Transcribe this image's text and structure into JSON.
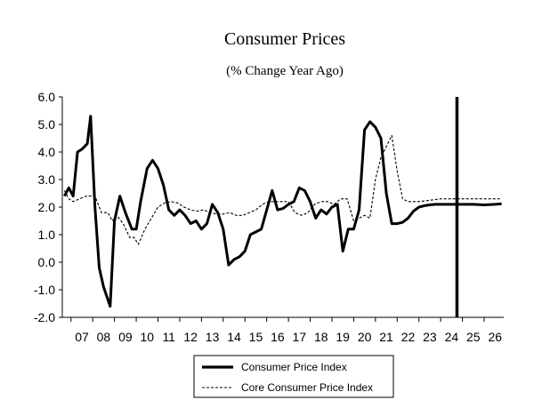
{
  "chart_data": {
    "type": "line",
    "title": "Consumer Prices",
    "subtitle": "(% Change Year Ago)",
    "xlabel": "",
    "ylabel": "",
    "ylim": [
      -2.0,
      6.0
    ],
    "y_ticks": [
      "6.0",
      "5.0",
      "4.0",
      "3.0",
      "2.0",
      "1.0",
      "0.0",
      "-1.0",
      "-2.0"
    ],
    "x_tick_labels": [
      "07",
      "08",
      "09",
      "10",
      "11",
      "12",
      "13",
      "14",
      "15",
      "16",
      "17",
      "18",
      "19",
      "20",
      "21",
      "22",
      "23",
      "24",
      "25",
      "26"
    ],
    "xlim": [
      2006.6,
      2026.9
    ],
    "forecast_line_x": 2024.75,
    "legend_position": "bottom",
    "series": [
      {
        "name": "Consumer Price Index",
        "style": "solid",
        "x": [
          2006.7,
          2006.9,
          2007.1,
          2007.3,
          2007.5,
          2007.75,
          2007.9,
          2008.1,
          2008.3,
          2008.5,
          2008.8,
          2009.0,
          2009.25,
          2009.5,
          2009.8,
          2010.0,
          2010.2,
          2010.5,
          2010.75,
          2011.0,
          2011.25,
          2011.5,
          2011.75,
          2012.0,
          2012.25,
          2012.5,
          2012.75,
          2013.0,
          2013.25,
          2013.5,
          2013.75,
          2014.0,
          2014.25,
          2014.5,
          2014.75,
          2015.0,
          2015.25,
          2015.5,
          2015.75,
          2016.0,
          2016.25,
          2016.5,
          2016.75,
          2017.0,
          2017.25,
          2017.5,
          2017.75,
          2018.0,
          2018.25,
          2018.5,
          2018.75,
          2019.0,
          2019.25,
          2019.5,
          2019.75,
          2020.0,
          2020.25,
          2020.5,
          2020.75,
          2021.0,
          2021.25,
          2021.5,
          2021.75,
          2022.0,
          2022.25,
          2022.5,
          2022.75,
          2023.0,
          2023.25,
          2023.5,
          2023.75,
          2024.0,
          2024.25,
          2024.5,
          2024.75,
          2025.0,
          2025.5,
          2026.0,
          2026.5,
          2026.8
        ],
        "values": [
          2.4,
          2.7,
          2.4,
          4.0,
          4.1,
          4.3,
          5.3,
          2.0,
          -0.2,
          -0.9,
          -1.6,
          1.5,
          2.4,
          1.8,
          1.2,
          1.2,
          2.2,
          3.4,
          3.7,
          3.4,
          2.8,
          1.9,
          1.7,
          1.9,
          1.7,
          1.4,
          1.5,
          1.2,
          1.4,
          2.1,
          1.8,
          1.2,
          -0.1,
          0.1,
          0.2,
          0.4,
          1.0,
          1.1,
          1.2,
          1.9,
          2.6,
          1.9,
          1.95,
          2.1,
          2.2,
          2.7,
          2.6,
          2.2,
          1.6,
          1.9,
          1.75,
          2.0,
          2.1,
          0.4,
          1.2,
          1.2,
          1.9,
          4.8,
          5.1,
          4.9,
          4.5,
          2.5,
          1.4,
          1.4,
          1.45,
          1.6,
          1.85,
          2.0,
          2.05,
          2.08,
          2.1,
          2.1,
          2.1,
          2.1,
          2.1,
          2.1,
          2.1,
          2.08,
          2.1,
          2.12
        ]
      },
      {
        "name": "Core Consumer Price Index",
        "style": "dashed",
        "x": [
          2006.7,
          2006.9,
          2007.1,
          2007.4,
          2007.7,
          2007.9,
          2008.1,
          2008.4,
          2008.7,
          2008.9,
          2009.1,
          2009.4,
          2009.7,
          2009.9,
          2010.1,
          2010.4,
          2010.7,
          2011.0,
          2011.3,
          2011.6,
          2011.9,
          2012.2,
          2012.5,
          2012.8,
          2013.1,
          2013.4,
          2013.7,
          2014.0,
          2014.3,
          2014.6,
          2014.9,
          2015.2,
          2015.5,
          2015.8,
          2016.1,
          2016.4,
          2016.7,
          2017.0,
          2017.3,
          2017.6,
          2017.9,
          2018.2,
          2018.5,
          2018.8,
          2019.1,
          2019.4,
          2019.7,
          2020.0,
          2020.25,
          2020.5,
          2020.75,
          2021.0,
          2021.25,
          2021.5,
          2021.75,
          2022.0,
          2022.25,
          2022.5,
          2022.75,
          2023.0,
          2023.5,
          2024.0,
          2024.5,
          2025.0,
          2025.5,
          2026.0,
          2026.5,
          2026.8
        ],
        "values": [
          2.6,
          2.3,
          2.2,
          2.3,
          2.4,
          2.4,
          2.4,
          1.8,
          1.8,
          1.5,
          1.7,
          1.4,
          0.9,
          0.9,
          0.65,
          1.2,
          1.6,
          2.0,
          2.15,
          2.2,
          2.15,
          2.0,
          1.9,
          1.85,
          1.9,
          1.8,
          1.75,
          1.75,
          1.8,
          1.7,
          1.7,
          1.8,
          1.9,
          2.1,
          2.2,
          2.2,
          2.2,
          2.2,
          1.8,
          1.7,
          1.8,
          2.1,
          2.2,
          2.2,
          2.1,
          2.3,
          2.3,
          1.5,
          1.6,
          1.7,
          1.6,
          3.0,
          3.8,
          4.2,
          4.6,
          3.3,
          2.3,
          2.2,
          2.2,
          2.2,
          2.25,
          2.3,
          2.3,
          2.3,
          2.3,
          2.3,
          2.3,
          2.3
        ]
      }
    ]
  }
}
